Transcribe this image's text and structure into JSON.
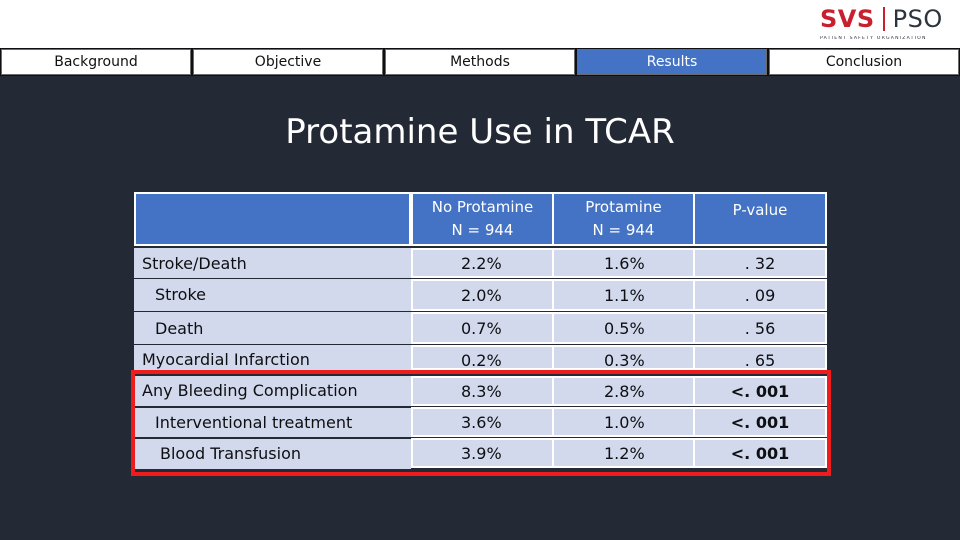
{
  "logo": {
    "main_left": "SVS",
    "main_right": "PSO",
    "subtitle": "PATIENT SAFETY ORGANIZATION"
  },
  "nav": {
    "tabs": [
      {
        "label": "Background",
        "active": false
      },
      {
        "label": "Objective",
        "active": false
      },
      {
        "label": "Methods",
        "active": false
      },
      {
        "label": "Results",
        "active": true
      },
      {
        "label": "Conclusion",
        "active": false
      }
    ]
  },
  "slide": {
    "title": "Protamine Use in TCAR"
  },
  "table": {
    "headers": [
      {
        "line1": "No Protamine",
        "line2": "N = 944"
      },
      {
        "line1": "Protamine",
        "line2": "N = 944"
      },
      {
        "line1": "P-value",
        "line2": ""
      }
    ],
    "rows": [
      {
        "label": "Stroke/Death",
        "values": [
          "2.2%",
          "1.6%",
          ". 32"
        ]
      },
      {
        "label": "Stroke",
        "values": [
          "2.0%",
          "1.1%",
          ". 09"
        ]
      },
      {
        "label": "Death",
        "values": [
          "0.7%",
          "0.5%",
          ". 56"
        ]
      },
      {
        "label": "Myocardial Infarction",
        "values": [
          "0.2%",
          "0.3%",
          ". 65"
        ]
      },
      {
        "label": "Any Bleeding Complication",
        "values": [
          "8.3%",
          "2.8%",
          "<. 001"
        ]
      },
      {
        "label": "Interventional treatment",
        "values": [
          "3.6%",
          "1.0%",
          "<. 001"
        ]
      },
      {
        "label": "Blood Transfusion",
        "values": [
          "3.9%",
          "1.2%",
          "<. 001"
        ]
      }
    ]
  },
  "colors": {
    "background": "#232a35",
    "accent": "#4472c4",
    "cell_fill": "#d2d9ec",
    "highlight_border": "#ee1c1c",
    "logo_red": "#c8202f"
  }
}
